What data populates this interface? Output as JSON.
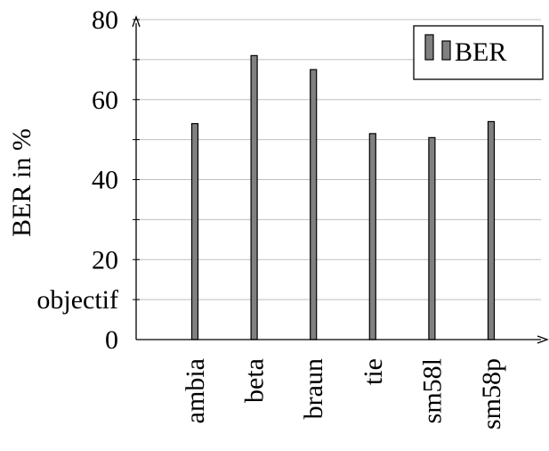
{
  "chart_data": {
    "type": "bar",
    "categories": [
      "ambia",
      "beta",
      "braun",
      "tie",
      "sm58l",
      "sm58p"
    ],
    "series": [
      {
        "name": "BER",
        "values": [
          54,
          71,
          67.5,
          51.5,
          50.5,
          54.5
        ],
        "color": "#808080"
      }
    ],
    "ylabel": "BER in %",
    "xlabel": "",
    "ylim": [
      0,
      80
    ],
    "yticks": [
      {
        "value": 0,
        "label": "0"
      },
      {
        "value": 20,
        "label": "20"
      },
      {
        "value": 40,
        "label": "40"
      },
      {
        "value": 60,
        "label": "60"
      },
      {
        "value": 80,
        "label": "80"
      }
    ],
    "minor_ticks": [
      10,
      30,
      50,
      70
    ],
    "annotations": [
      {
        "y": 10,
        "text": "objectif"
      }
    ],
    "grid": true,
    "legend": {
      "position": "top-right",
      "entries": [
        "BER"
      ]
    }
  }
}
